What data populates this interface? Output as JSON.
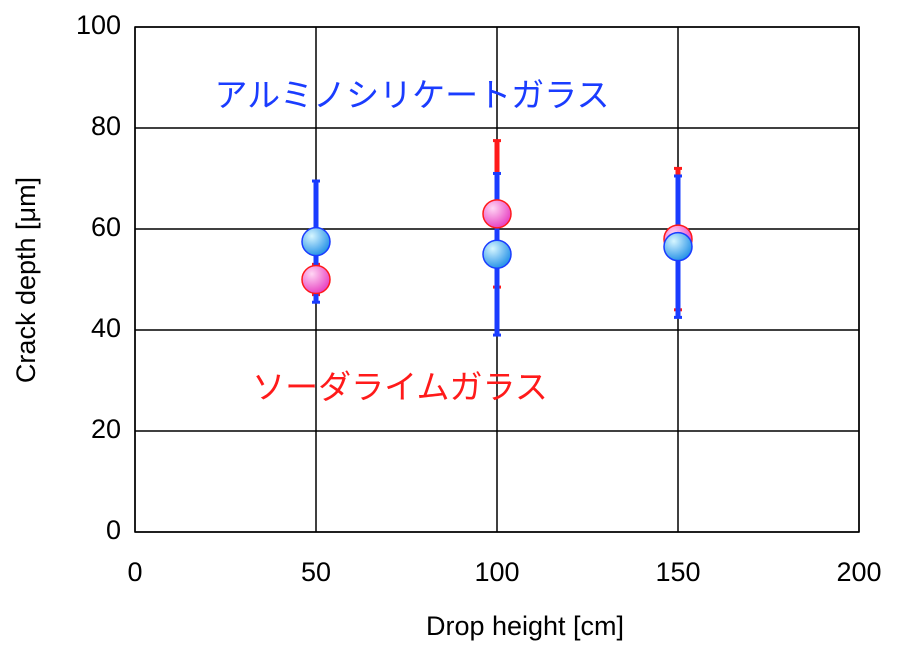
{
  "chart_data": {
    "type": "errorbar",
    "x_label": "Drop height [cm]",
    "y_label": "Crack depth [μm]",
    "xlim": [
      0,
      200
    ],
    "xticks": [
      0,
      50,
      100,
      150,
      200
    ],
    "ylim": [
      0,
      100
    ],
    "yticks": [
      0,
      20,
      40,
      60,
      80,
      100
    ],
    "grid": true,
    "x": [
      50,
      100,
      150
    ],
    "series": [
      {
        "name": "ソーダライムガラス",
        "color": "#ff1a1a",
        "values": [
          50,
          63,
          58
        ],
        "errors": [
          3,
          14.5,
          14
        ]
      },
      {
        "name": "アルミノシリケートガラス",
        "color": "#1a3cff",
        "values": [
          57.5,
          55,
          56.5
        ],
        "errors": [
          12,
          16,
          14
        ]
      }
    ]
  }
}
